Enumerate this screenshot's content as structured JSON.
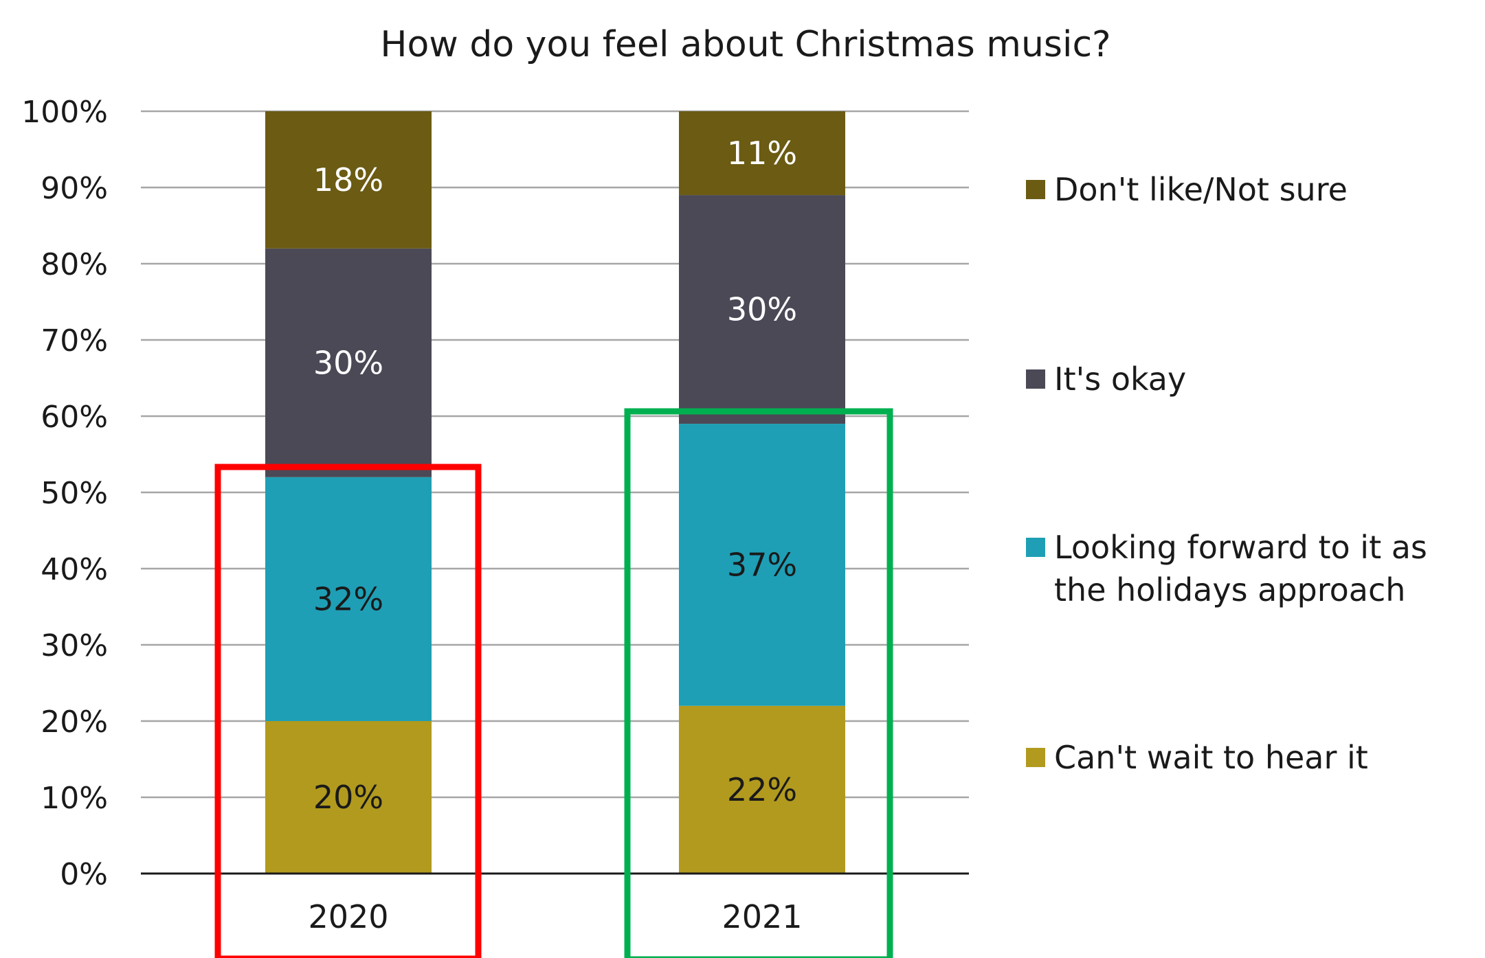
{
  "chart_data": {
    "type": "bar",
    "stacked": true,
    "title": "How do you feel about Christmas music?",
    "xlabel": "",
    "ylabel": "",
    "categories": [
      "2020",
      "2021"
    ],
    "ylim": [
      0,
      100
    ],
    "yticks": [
      "0%",
      "10%",
      "20%",
      "30%",
      "40%",
      "50%",
      "60%",
      "70%",
      "80%",
      "90%",
      "100%"
    ],
    "grid": true,
    "legend_position": "right",
    "series": [
      {
        "name": "Can't wait to hear it",
        "values": [
          20,
          22
        ],
        "labels": [
          "20%",
          "22%"
        ],
        "color": "#b19a1e",
        "label_color": "#1a1a1a"
      },
      {
        "name": "Looking forward to it as the holidays approach",
        "values": [
          32,
          37
        ],
        "labels": [
          "32%",
          "37%"
        ],
        "color": "#1e9fb5",
        "label_color": "#1a1a1a"
      },
      {
        "name": "It's okay",
        "values": [
          30,
          30
        ],
        "labels": [
          "30%",
          "30%"
        ],
        "color": "#4b4956",
        "label_color": "#ffffff"
      },
      {
        "name": "Don't like/Not sure",
        "values": [
          18,
          11
        ],
        "labels": [
          "18%",
          "11%"
        ],
        "color": "#6b5b13",
        "label_color": "#ffffff"
      }
    ],
    "legend_order": [
      3,
      2,
      1,
      0
    ],
    "legend_lines": [
      [
        "Don't like/Not sure"
      ],
      [
        "It's okay"
      ],
      [
        "Looking forward to it as",
        "the holidays approach"
      ],
      [
        "Can't wait to hear it"
      ]
    ],
    "highlights": [
      {
        "category": "2020",
        "color": "#ff0000"
      },
      {
        "category": "2021",
        "color": "#00b050"
      }
    ]
  }
}
